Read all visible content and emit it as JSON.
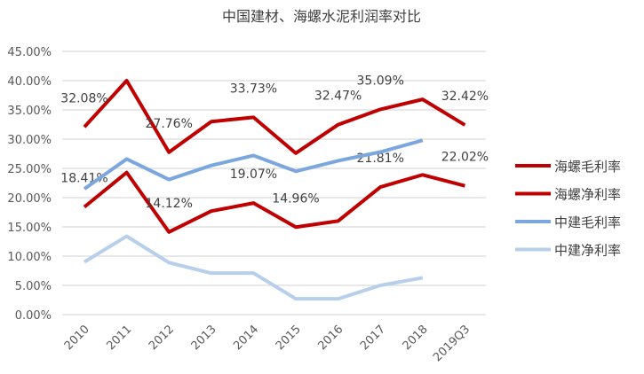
{
  "chart_data": {
    "type": "line",
    "title": "中国建材、海螺水泥利润率对比",
    "xlabel": "",
    "ylabel": "",
    "categories": [
      "2010",
      "2011",
      "2012",
      "2013",
      "2014",
      "2015",
      "2016",
      "2017",
      "2018",
      "2019Q3"
    ],
    "ylim": [
      0,
      45
    ],
    "yticks": [
      "0.00%",
      "5.00%",
      "10.00%",
      "15.00%",
      "20.00%",
      "25.00%",
      "30.00%",
      "35.00%",
      "40.00%",
      "45.00%"
    ],
    "grid": true,
    "legend_position": "right",
    "series": [
      {
        "name": "海螺毛利率",
        "color": "#C00000",
        "values": [
          32.08,
          40.0,
          27.76,
          33.0,
          33.73,
          27.6,
          32.47,
          35.09,
          36.8,
          32.42
        ],
        "labels": [
          "32.08%",
          null,
          "27.76%",
          null,
          "33.73%",
          null,
          "32.47%",
          "35.09%",
          null,
          "32.42%"
        ]
      },
      {
        "name": "海螺净利率",
        "color": "#C00000",
        "values": [
          18.41,
          24.3,
          14.12,
          17.7,
          19.07,
          14.96,
          16.0,
          21.81,
          23.9,
          22.02
        ],
        "labels": [
          "18.41%",
          null,
          "14.12%",
          null,
          "19.07%",
          "14.96%",
          null,
          "21.81%",
          null,
          "22.02%"
        ]
      },
      {
        "name": "中建毛利率",
        "color": "#7BA7DE",
        "values": [
          21.5,
          26.6,
          23.1,
          25.5,
          27.2,
          24.5,
          26.3,
          27.8,
          29.8,
          null
        ],
        "labels": []
      },
      {
        "name": "中建净利率",
        "color": "#B8CFEC",
        "values": [
          9.0,
          13.4,
          8.9,
          7.1,
          7.1,
          2.7,
          2.7,
          5.0,
          6.3,
          null
        ],
        "labels": []
      }
    ]
  }
}
